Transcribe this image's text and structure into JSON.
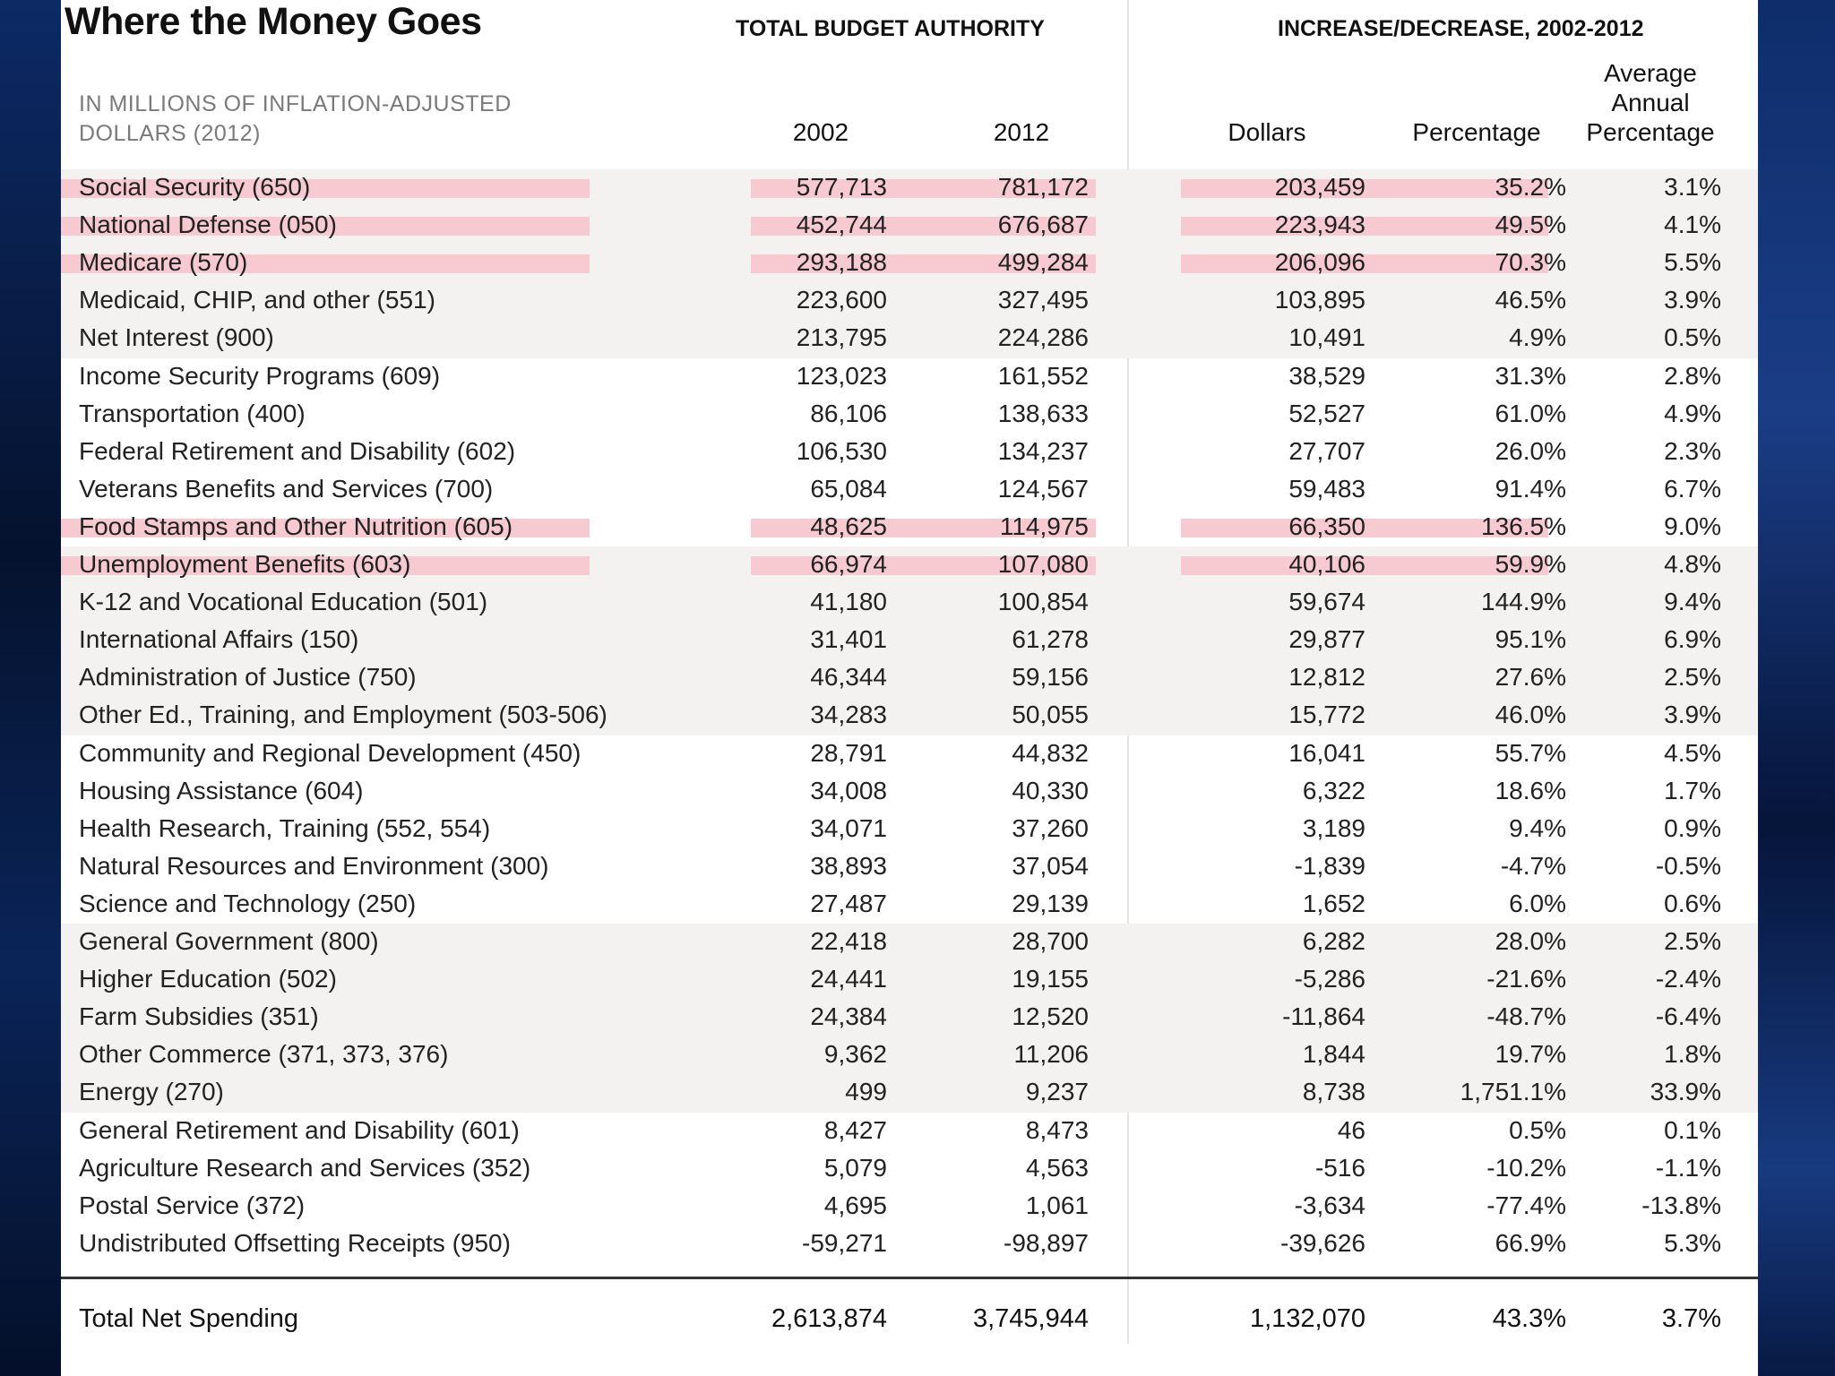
{
  "chart_data": {
    "type": "table",
    "title": "Where the Money Goes",
    "group_headers": [
      "TOTAL BUDGET AUTHORITY",
      "INCREASE/DECREASE, 2002-2012"
    ],
    "subtitle": "IN MILLIONS OF INFLATION-ADJUSTED DOLLARS (2012)",
    "columns": [
      "2002",
      "2012",
      "Dollars",
      "Percentage",
      "Average Annual Percentage"
    ],
    "highlight_color": "#f7c9d0",
    "highlighted_rows": [
      0,
      1,
      2,
      9,
      10
    ],
    "rows": [
      [
        "Social Security (650)",
        "577,713",
        "781,172",
        "203,459",
        "35.2%",
        "3.1%"
      ],
      [
        "National Defense (050)",
        "452,744",
        "676,687",
        "223,943",
        "49.5%",
        "4.1%"
      ],
      [
        "Medicare (570)",
        "293,188",
        "499,284",
        "206,096",
        "70.3%",
        "5.5%"
      ],
      [
        "Medicaid, CHIP, and other (551)",
        "223,600",
        "327,495",
        "103,895",
        "46.5%",
        "3.9%"
      ],
      [
        "Net Interest (900)",
        "213,795",
        "224,286",
        "10,491",
        "4.9%",
        "0.5%"
      ],
      [
        "Income Security Programs (609)",
        "123,023",
        "161,552",
        "38,529",
        "31.3%",
        "2.8%"
      ],
      [
        "Transportation (400)",
        "86,106",
        "138,633",
        "52,527",
        "61.0%",
        "4.9%"
      ],
      [
        "Federal Retirement and Disability (602)",
        "106,530",
        "134,237",
        "27,707",
        "26.0%",
        "2.3%"
      ],
      [
        "Veterans Benefits and Services (700)",
        "65,084",
        "124,567",
        "59,483",
        "91.4%",
        "6.7%"
      ],
      [
        "Food Stamps and Other Nutrition (605)",
        "48,625",
        "114,975",
        "66,350",
        "136.5%",
        "9.0%"
      ],
      [
        "Unemployment Benefits (603)",
        "66,974",
        "107,080",
        "40,106",
        "59.9%",
        "4.8%"
      ],
      [
        "K-12 and Vocational Education (501)",
        "41,180",
        "100,854",
        "59,674",
        "144.9%",
        "9.4%"
      ],
      [
        "International Affairs (150)",
        "31,401",
        "61,278",
        "29,877",
        "95.1%",
        "6.9%"
      ],
      [
        "Administration of Justice (750)",
        "46,344",
        "59,156",
        "12,812",
        "27.6%",
        "2.5%"
      ],
      [
        "Other Ed., Training, and Employment (503-506)",
        "34,283",
        "50,055",
        "15,772",
        "46.0%",
        "3.9%"
      ],
      [
        "Community and Regional Development (450)",
        "28,791",
        "44,832",
        "16,041",
        "55.7%",
        "4.5%"
      ],
      [
        "Housing Assistance (604)",
        "34,008",
        "40,330",
        "6,322",
        "18.6%",
        "1.7%"
      ],
      [
        "Health Research, Training (552, 554)",
        "34,071",
        "37,260",
        "3,189",
        "9.4%",
        "0.9%"
      ],
      [
        "Natural Resources and Environment (300)",
        "38,893",
        "37,054",
        "-1,839",
        "-4.7%",
        "-0.5%"
      ],
      [
        "Science and Technology (250)",
        "27,487",
        "29,139",
        "1,652",
        "6.0%",
        "0.6%"
      ],
      [
        "General Government (800)",
        "22,418",
        "28,700",
        "6,282",
        "28.0%",
        "2.5%"
      ],
      [
        "Higher Education (502)",
        "24,441",
        "19,155",
        "-5,286",
        "-21.6%",
        "-2.4%"
      ],
      [
        "Farm Subsidies (351)",
        "24,384",
        "12,520",
        "-11,864",
        "-48.7%",
        "-6.4%"
      ],
      [
        "Other Commerce (371, 373, 376)",
        "9,362",
        "11,206",
        "1,844",
        "19.7%",
        "1.8%"
      ],
      [
        "Energy (270)",
        "499",
        "9,237",
        "8,738",
        "1,751.1%",
        "33.9%"
      ],
      [
        "General Retirement and Disability (601)",
        "8,427",
        "8,473",
        "46",
        "0.5%",
        "0.1%"
      ],
      [
        "Agriculture Research and Services (352)",
        "5,079",
        "4,563",
        "-516",
        "-10.2%",
        "-1.1%"
      ],
      [
        "Postal Service (372)",
        "4,695",
        "1,061",
        "-3,634",
        "-77.4%",
        "-13.8%"
      ],
      [
        "Undistributed Offsetting Receipts (950)",
        "-59,271",
        "-98,897",
        "-39,626",
        "66.9%",
        "5.3%"
      ]
    ],
    "total": [
      "Total Net Spending",
      "2,613,874",
      "3,745,944",
      "1,132,070",
      "43.3%",
      "3.7%"
    ]
  }
}
